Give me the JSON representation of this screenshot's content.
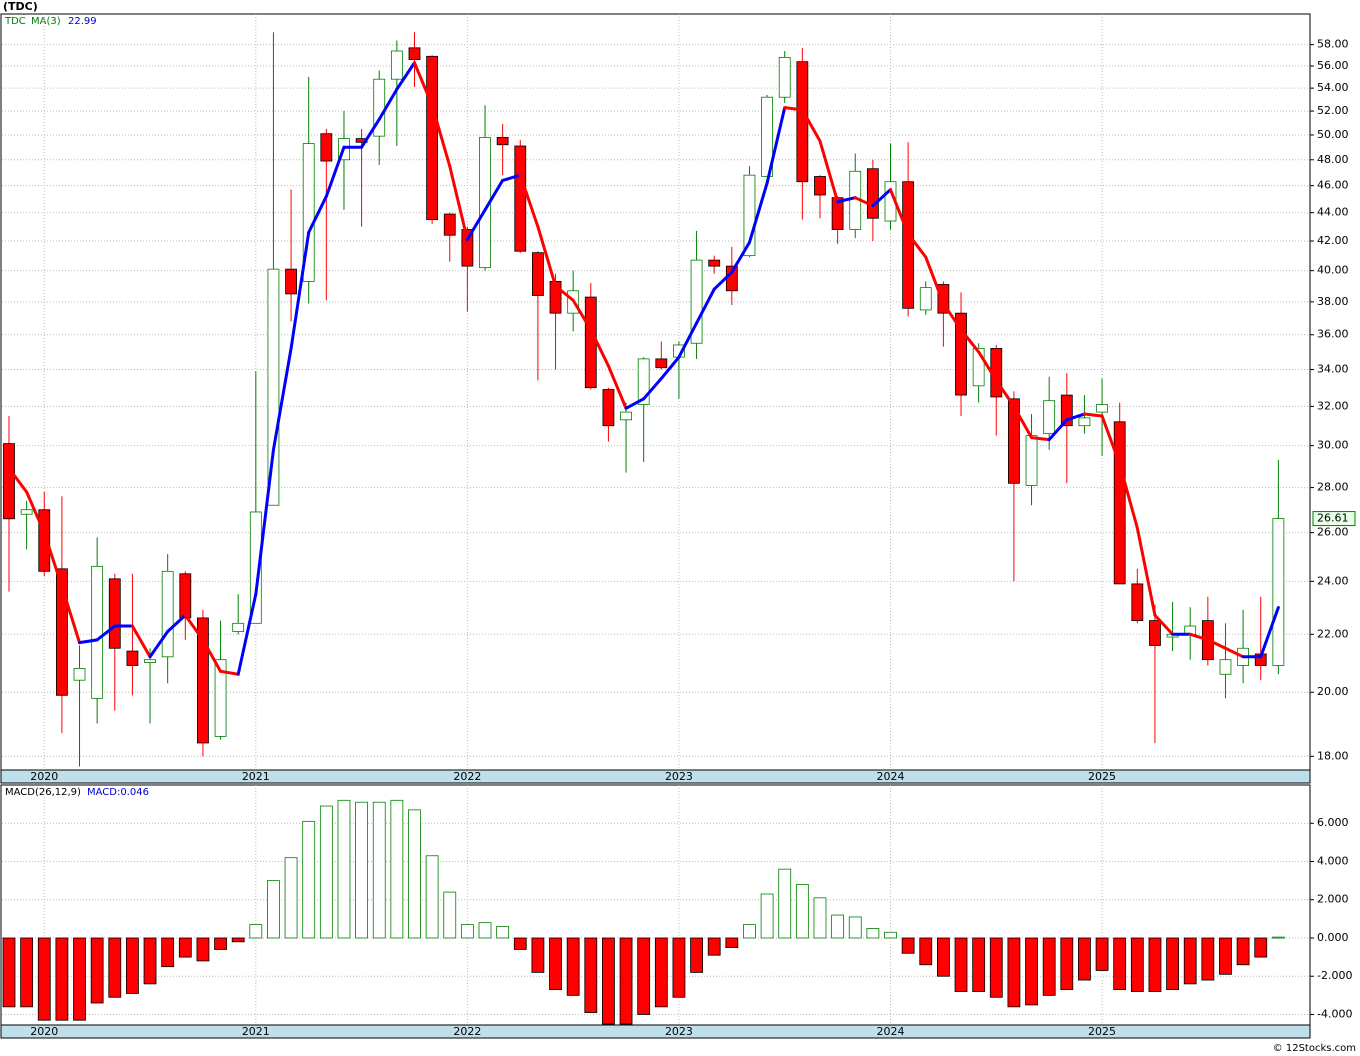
{
  "chart_data": [
    {
      "type": "candlestick",
      "title": "(TDC)",
      "name": "TDC",
      "log": true,
      "grid": true,
      "up_color": "#008000",
      "down_color": "#ff0000",
      "categories": [
        null,
        null,
        "2020",
        null,
        null,
        null,
        null,
        null,
        null,
        null,
        null,
        null,
        null,
        null,
        "2021",
        null,
        null,
        null,
        null,
        null,
        null,
        null,
        null,
        null,
        null,
        null,
        "2022",
        null,
        null,
        null,
        null,
        null,
        null,
        null,
        null,
        null,
        null,
        null,
        "2023",
        null,
        null,
        null,
        null,
        null,
        null,
        null,
        null,
        null,
        null,
        null,
        "2024",
        null,
        null,
        null,
        null,
        null,
        null,
        null,
        null,
        null,
        null,
        null,
        "2025",
        null,
        null,
        null,
        null,
        null,
        null,
        null,
        null,
        null,
        null
      ],
      "open": [
        30.1,
        26.8,
        27.0,
        24.5,
        20.4,
        19.8,
        24.1,
        21.4,
        21.0,
        21.2,
        24.3,
        22.6,
        18.6,
        22.1,
        22.4,
        27.2,
        40.1,
        39.3,
        50.1,
        48.0,
        49.7,
        49.9,
        54.8,
        57.7,
        56.9,
        43.9,
        42.8,
        40.2,
        49.8,
        49.1,
        41.2,
        39.3,
        37.3,
        38.3,
        32.9,
        31.3,
        32.1,
        34.6,
        34.7,
        35.5,
        40.7,
        40.3,
        41.0,
        46.7,
        53.2,
        56.4,
        46.7,
        45.1,
        42.8,
        47.3,
        43.4,
        46.3,
        37.5,
        39.1,
        37.3,
        33.1,
        35.2,
        32.4,
        28.1,
        30.6,
        32.6,
        31.0,
        31.7,
        31.2,
        23.9,
        22.5,
        21.9,
        22.0,
        22.5,
        20.6,
        20.9,
        21.3,
        20.9
      ],
      "high": [
        31.5,
        27.4,
        27.8,
        27.6,
        21.6,
        25.8,
        24.3,
        24.3,
        21.5,
        25.1,
        24.4,
        22.9,
        22.5,
        23.5,
        33.9,
        59.2,
        45.7,
        55.0,
        50.5,
        52.0,
        50.5,
        55.6,
        58.4,
        59.2,
        57.0,
        44.0,
        43.0,
        52.5,
        50.9,
        49.6,
        41.3,
        39.8,
        40.0,
        39.2,
        33.0,
        32.2,
        34.7,
        35.6,
        35.6,
        42.7,
        41.0,
        41.6,
        47.5,
        53.4,
        57.4,
        57.7,
        46.8,
        45.2,
        48.5,
        48.0,
        49.3,
        49.4,
        39.3,
        39.3,
        38.6,
        35.5,
        35.4,
        32.8,
        31.6,
        33.6,
        33.8,
        32.6,
        33.5,
        32.2,
        24.5,
        23.1,
        23.2,
        23.0,
        23.4,
        22.4,
        22.9,
        23.4,
        29.3
      ],
      "low": [
        23.6,
        25.3,
        24.2,
        18.7,
        17.7,
        19.0,
        19.4,
        19.9,
        19.0,
        20.3,
        21.8,
        18.0,
        18.5,
        22.0,
        22.4,
        27.2,
        36.8,
        37.9,
        38.1,
        44.2,
        43.0,
        47.6,
        49.1,
        54.1,
        43.2,
        40.6,
        37.4,
        40.0,
        46.8,
        41.2,
        33.4,
        34.0,
        36.2,
        32.9,
        30.2,
        28.7,
        29.2,
        34.0,
        32.4,
        34.6,
        39.8,
        37.8,
        40.9,
        46.7,
        52.7,
        43.5,
        43.6,
        41.8,
        42.2,
        42.0,
        42.8,
        37.1,
        37.2,
        35.3,
        31.5,
        32.2,
        30.5,
        24.0,
        27.2,
        29.8,
        28.2,
        30.6,
        29.5,
        23.9,
        22.4,
        18.4,
        21.4,
        21.1,
        20.9,
        19.8,
        20.3,
        20.4,
        20.6
      ],
      "close": [
        26.6,
        27.0,
        24.4,
        19.9,
        20.8,
        24.6,
        21.5,
        20.9,
        21.1,
        24.4,
        22.6,
        18.4,
        21.1,
        22.4,
        26.9,
        40.1,
        38.5,
        49.3,
        47.9,
        49.7,
        49.4,
        54.8,
        57.4,
        56.6,
        43.5,
        42.4,
        40.3,
        49.8,
        49.2,
        41.3,
        38.4,
        37.3,
        38.7,
        33.0,
        31.0,
        31.7,
        34.6,
        34.1,
        35.4,
        40.7,
        40.3,
        38.7,
        46.8,
        53.2,
        56.8,
        46.3,
        45.3,
        42.8,
        47.1,
        43.6,
        46.3,
        37.6,
        38.9,
        37.3,
        32.6,
        35.2,
        32.5,
        28.2,
        30.5,
        32.3,
        31.0,
        31.4,
        32.1,
        23.9,
        22.5,
        21.6,
        22.0,
        22.3,
        21.1,
        21.1,
        21.5,
        20.9,
        26.61
      ],
      "ma": {
        "name": "MA(3)",
        "rise_color": "#0000ff",
        "fall_color": "#ff0000",
        "values": [
          28.9,
          27.8,
          26.0,
          23.8,
          21.7,
          21.8,
          22.3,
          22.3,
          21.2,
          22.1,
          22.7,
          21.8,
          20.7,
          20.6,
          23.5,
          29.8,
          35.2,
          42.6,
          45.2,
          49.0,
          49.0,
          51.3,
          53.9,
          56.3,
          52.5,
          47.5,
          42.1,
          44.2,
          46.4,
          46.8,
          43.0,
          39.0,
          38.1,
          36.3,
          34.2,
          31.9,
          32.4,
          33.5,
          34.7,
          36.7,
          38.8,
          39.9,
          41.9,
          46.2,
          52.3,
          52.1,
          49.5,
          44.8,
          45.1,
          44.5,
          45.7,
          42.5,
          40.9,
          37.9,
          36.3,
          35.0,
          33.4,
          32.0,
          30.4,
          30.3,
          31.3,
          31.6,
          31.5,
          29.1,
          26.2,
          22.7,
          22.0,
          22.0,
          21.8,
          21.5,
          21.2,
          21.2,
          22.99
        ]
      },
      "ylim": [
        17.6,
        61
      ],
      "yticks": [
        {
          "value": 18,
          "label": "18.00"
        },
        {
          "value": 20,
          "label": "20.00"
        },
        {
          "value": 22,
          "label": "22.00"
        },
        {
          "value": 24,
          "label": "24.00"
        },
        {
          "value": 26,
          "label": "26.00"
        },
        {
          "value": 28,
          "label": "28.00"
        },
        {
          "value": 30,
          "label": "30.00"
        },
        {
          "value": 32,
          "label": "32.00"
        },
        {
          "value": 34,
          "label": "34.00"
        },
        {
          "value": 36,
          "label": "36.00"
        },
        {
          "value": 38,
          "label": "38.00"
        },
        {
          "value": 40,
          "label": "40.00"
        },
        {
          "value": 42,
          "label": "42.00"
        },
        {
          "value": 44,
          "label": "44.00"
        },
        {
          "value": 46,
          "label": "46.00"
        },
        {
          "value": 48,
          "label": "48.00"
        },
        {
          "value": 50,
          "label": "50.00"
        },
        {
          "value": 52,
          "label": "52.00"
        },
        {
          "value": 54,
          "label": "54.00"
        },
        {
          "value": 56,
          "label": "56.00"
        },
        {
          "value": 58,
          "label": "58.00"
        }
      ]
    },
    {
      "type": "bar",
      "title": "MACD(26,12,9)",
      "legend_label": "MACD:0.046",
      "grid": true,
      "up_color": "#008000",
      "down_color": "#ff0000",
      "values": [
        -3.6,
        -3.6,
        -4.3,
        -4.3,
        -4.3,
        -3.4,
        -3.1,
        -2.9,
        -2.4,
        -1.5,
        -1.0,
        -1.2,
        -0.6,
        -0.2,
        0.7,
        3.0,
        4.2,
        6.1,
        6.9,
        7.2,
        7.1,
        7.1,
        7.2,
        6.7,
        4.3,
        2.4,
        0.7,
        0.8,
        0.6,
        -0.6,
        -1.8,
        -2.7,
        -3.0,
        -3.9,
        -4.5,
        -4.5,
        -4.0,
        -3.6,
        -3.1,
        -1.8,
        -0.9,
        -0.5,
        0.7,
        2.3,
        3.6,
        2.8,
        2.1,
        1.2,
        1.1,
        0.5,
        0.3,
        -0.8,
        -1.4,
        -2.0,
        -2.8,
        -2.8,
        -3.1,
        -3.6,
        -3.5,
        -3.0,
        -2.7,
        -2.2,
        -1.7,
        -2.7,
        -2.8,
        -2.8,
        -2.7,
        -2.4,
        -2.2,
        -1.9,
        -1.4,
        -1.0,
        0.046
      ],
      "ylim": [
        -4.55,
        8.0
      ],
      "yticks": [
        {
          "value": -4,
          "label": "-4.000"
        },
        {
          "value": -2,
          "label": "-2.000"
        },
        {
          "value": 0,
          "label": "0.000"
        },
        {
          "value": 2,
          "label": "2.000"
        },
        {
          "value": 4,
          "label": "4.000"
        },
        {
          "value": 6,
          "label": "6.000"
        }
      ]
    }
  ],
  "footer": "© 12Stocks.com"
}
